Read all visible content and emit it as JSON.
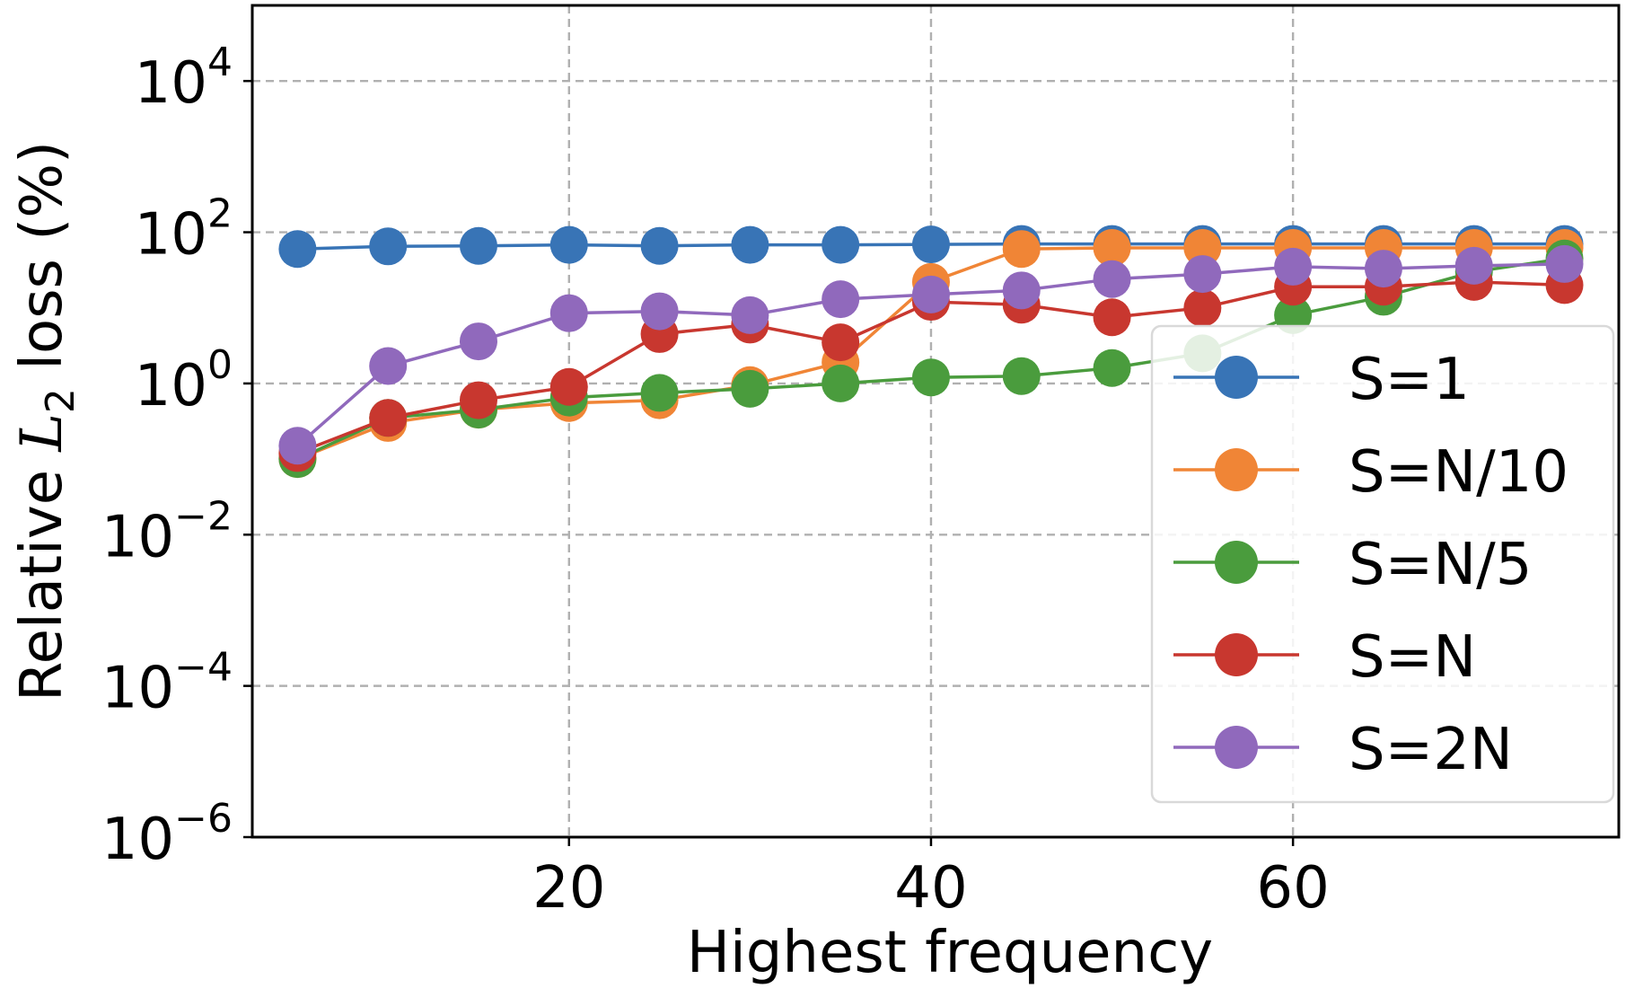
{
  "chart_data": {
    "type": "line",
    "xlabel": "Highest frequency",
    "ylabel_prefix": "Relative ",
    "ylabel_var": "L",
    "ylabel_sub": "2",
    "ylabel_suffix": " loss (%)",
    "yscale": "log",
    "ylim": [
      1e-06,
      100000
    ],
    "xlim": [
      2.5,
      78
    ],
    "grid": true,
    "legend_position": "center-right",
    "x_ticks": [
      {
        "value": 20,
        "label": "20"
      },
      {
        "value": 40,
        "label": "40"
      },
      {
        "value": 60,
        "label": "60"
      }
    ],
    "y_ticks": [
      {
        "value": 10000,
        "base": "10",
        "exp": "4"
      },
      {
        "value": 100,
        "base": "10",
        "exp": "2"
      },
      {
        "value": 1,
        "base": "10",
        "exp": "0"
      },
      {
        "value": 0.01,
        "base": "10",
        "exp": "−2"
      },
      {
        "value": 0.0001,
        "base": "10",
        "exp": "−4"
      },
      {
        "value": 1e-06,
        "base": "10",
        "exp": "−6"
      }
    ],
    "x": [
      5,
      10,
      15,
      20,
      25,
      30,
      35,
      40,
      45,
      50,
      55,
      60,
      65,
      70,
      75
    ],
    "series": [
      {
        "name": "S=1",
        "color": "#3874b6",
        "values": [
          60,
          65,
          66,
          68,
          66,
          68,
          68,
          69,
          70,
          70,
          70,
          70,
          70,
          70,
          70
        ]
      },
      {
        "name": "S=N/10",
        "color": "#f08536",
        "values": [
          0.1,
          0.3,
          0.45,
          0.55,
          0.6,
          0.95,
          1.9,
          22,
          60,
          62,
          62,
          62,
          62,
          62,
          62
        ]
      },
      {
        "name": "S=N/5",
        "color": "#4a9c3d",
        "values": [
          0.1,
          0.35,
          0.45,
          0.65,
          0.75,
          0.85,
          1.0,
          1.2,
          1.25,
          1.6,
          2.5,
          8,
          14,
          30,
          45
        ]
      },
      {
        "name": "S=N",
        "color": "#c8372f",
        "values": [
          0.12,
          0.35,
          0.6,
          0.9,
          4.5,
          6,
          3.5,
          12,
          11,
          7.5,
          10,
          19,
          19,
          22,
          20
        ]
      },
      {
        "name": "S=2N",
        "color": "#9069bc",
        "values": [
          0.15,
          1.7,
          3.6,
          8.5,
          9,
          8,
          13,
          15,
          17,
          24,
          28,
          35,
          33,
          36,
          38
        ]
      }
    ]
  }
}
